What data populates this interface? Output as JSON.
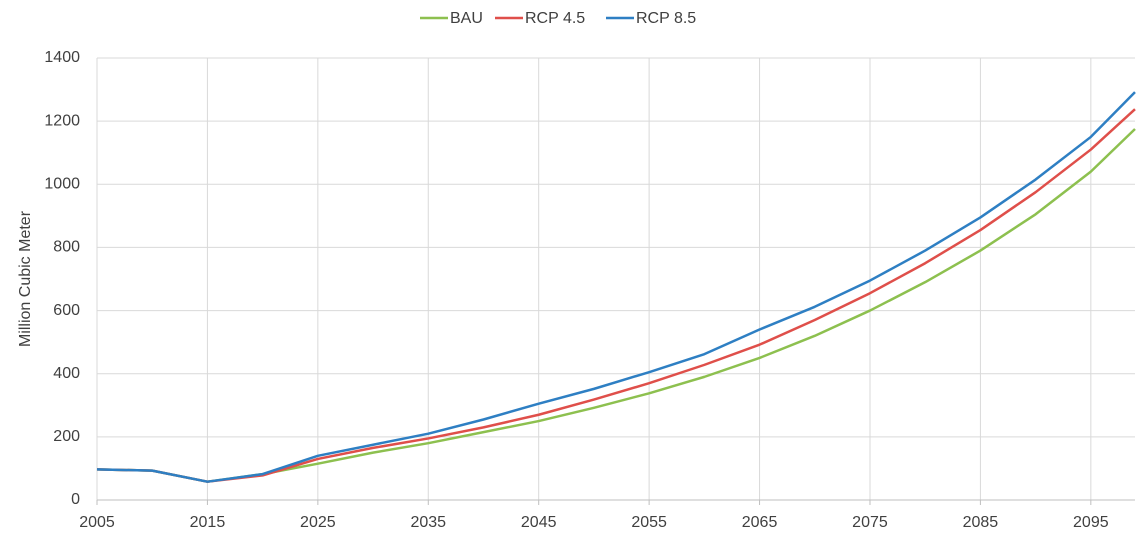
{
  "chart_data": {
    "type": "line",
    "y_label": "Million Cubic Meter",
    "x": [
      2005,
      2010,
      2015,
      2020,
      2025,
      2030,
      2035,
      2040,
      2045,
      2050,
      2055,
      2060,
      2065,
      2070,
      2075,
      2080,
      2085,
      2090,
      2095,
      2099
    ],
    "series": [
      {
        "name": "BAU",
        "color": "#8dc04f",
        "values": [
          97,
          93,
          58,
          82,
          115,
          150,
          180,
          215,
          250,
          292,
          338,
          390,
          450,
          520,
          600,
          690,
          790,
          905,
          1040,
          1175
        ]
      },
      {
        "name": "RCP 4.5",
        "color": "#df4f4a",
        "values": [
          97,
          93,
          58,
          78,
          130,
          165,
          195,
          230,
          270,
          318,
          370,
          428,
          492,
          570,
          655,
          750,
          855,
          975,
          1110,
          1238
        ]
      },
      {
        "name": "RCP 8.5",
        "color": "#2e7fc3",
        "values": [
          97,
          93,
          58,
          82,
          140,
          175,
          210,
          255,
          305,
          352,
          405,
          462,
          540,
          612,
          695,
          790,
          895,
          1015,
          1150,
          1292
        ]
      }
    ],
    "xlim": [
      2005,
      2099
    ],
    "xticks": [
      2005,
      2015,
      2025,
      2035,
      2045,
      2055,
      2065,
      2075,
      2085,
      2095
    ],
    "ylim": [
      0,
      1400
    ],
    "yticks": [
      0,
      200,
      400,
      600,
      800,
      1000,
      1200,
      1400
    ],
    "grid": true,
    "legend": "top"
  }
}
